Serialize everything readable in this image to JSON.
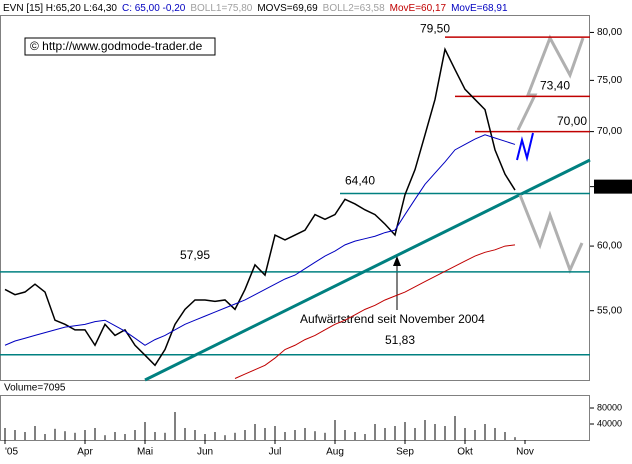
{
  "chart_data": [
    {
      "type": "line",
      "header": [
        {
          "text": "EVN [15] H:65,20 L:64,30",
          "color": "#000000"
        },
        {
          "text": "C: 65,00 -0,20",
          "color": "#0000c0"
        },
        {
          "text": "BOLL1=75,80",
          "color": "#a0a0a0"
        },
        {
          "text": "MOVS=69,69",
          "color": "#000000"
        },
        {
          "text": "BOLL2=63,58",
          "color": "#a0a0a0"
        },
        {
          "text": "MovE=60,17",
          "color": "#c00000"
        },
        {
          "text": "MovE=68,91",
          "color": "#0000c0"
        }
      ],
      "copyright": "© http://www.godmode-trader.de",
      "annotation": "Aufwärtstrend seit November 2004",
      "log_scale": true,
      "ylim": [
        50.1,
        81.9
      ],
      "yticks": [
        {
          "value": 55,
          "label": "55,00"
        },
        {
          "value": 60,
          "label": "60,00"
        },
        {
          "value": 65,
          "label": "65,00"
        },
        {
          "value": 70,
          "label": "70,00"
        },
        {
          "value": 75,
          "label": "75,00"
        },
        {
          "value": 80,
          "label": "80,00"
        }
      ],
      "levels": [
        {
          "value": 79.5,
          "label": "79,50",
          "color": "#c00000"
        },
        {
          "value": 73.4,
          "label": "73,40",
          "color": "#c00000"
        },
        {
          "value": 70.0,
          "label": "70,00",
          "color": "#c00000"
        },
        {
          "value": 64.4,
          "label": "64,40",
          "color": "#008080"
        },
        {
          "value": 57.95,
          "label": "57,95",
          "color": "#008080"
        },
        {
          "value": 51.83,
          "label": "51,83",
          "color": "#008080"
        }
      ],
      "categories": [
        "'05",
        null,
        null,
        null,
        null,
        null,
        null,
        null,
        "Apr",
        null,
        null,
        null,
        null,
        null,
        "Mai",
        null,
        null,
        null,
        null,
        null,
        "Jun",
        null,
        null,
        null,
        null,
        null,
        null,
        "Jul",
        null,
        null,
        null,
        null,
        null,
        "Aug",
        null,
        null,
        null,
        null,
        null,
        null,
        "Sep",
        null,
        null,
        null,
        null,
        null,
        "Okt",
        null,
        null,
        null,
        null,
        null,
        "Nov",
        null,
        null,
        null,
        null,
        null,
        null
      ],
      "series": [
        {
          "name": "EVN",
          "color": "#000000",
          "values": [
            56.6,
            56.2,
            56.4,
            57.0,
            56.4,
            54.3,
            54.0,
            53.6,
            53.6,
            52.5,
            54.0,
            53.2,
            53.6,
            52.5,
            51.8,
            51.1,
            52.2,
            54.0,
            55.1,
            55.8,
            55.8,
            55.7,
            55.8,
            55.1,
            56.6,
            58.5,
            57.7,
            60.9,
            60.5,
            60.9,
            61.3,
            62.6,
            62.2,
            62.6,
            63.9,
            63.5,
            63.0,
            62.6,
            61.8,
            60.9,
            64.3,
            66.5,
            69.7,
            73.1,
            78.2,
            76.1,
            74.1,
            73.1,
            72.1,
            68.3,
            66.1,
            64.7,
            null,
            null,
            null,
            null,
            null,
            null,
            null
          ]
        },
        {
          "name": "MovE=68,91",
          "color": "#0000c0",
          "values": [
            52.5,
            52.8,
            53.0,
            53.2,
            53.4,
            53.6,
            53.8,
            53.9,
            54.0,
            54.2,
            54.3,
            53.9,
            53.5,
            53.0,
            52.5,
            52.9,
            53.2,
            53.6,
            54.0,
            54.3,
            54.6,
            54.9,
            55.2,
            55.5,
            55.8,
            56.2,
            56.6,
            57.0,
            57.4,
            57.7,
            58.2,
            58.7,
            59.2,
            59.6,
            60.1,
            60.4,
            60.6,
            60.8,
            61.1,
            61.3,
            62.6,
            63.9,
            65.2,
            66.2,
            67.2,
            68.3,
            68.8,
            69.3,
            69.7,
            69.4,
            69.1,
            68.8,
            null,
            null,
            null,
            null,
            null,
            null,
            null
          ]
        },
        {
          "name": "MovE=60,17",
          "color": "#c00000",
          "values": [
            null,
            null,
            null,
            null,
            null,
            null,
            null,
            null,
            null,
            null,
            null,
            null,
            null,
            null,
            null,
            null,
            null,
            null,
            null,
            null,
            null,
            null,
            null,
            50.2,
            50.5,
            50.8,
            51.1,
            51.6,
            52.2,
            52.5,
            52.9,
            53.2,
            53.6,
            54.0,
            54.3,
            54.7,
            55.1,
            55.4,
            55.8,
            56.1,
            56.4,
            56.8,
            57.2,
            57.6,
            58.0,
            58.4,
            58.8,
            59.2,
            59.5,
            59.7,
            60.0,
            60.1,
            null,
            null,
            null,
            null,
            null,
            null,
            null
          ]
        }
      ]
    },
    {
      "type": "bar",
      "label": "Volume=7095",
      "color": "#808080",
      "ylim": [
        0,
        110000
      ],
      "yticks": [
        40000,
        80000
      ],
      "values": [
        30000,
        25000,
        20000,
        35000,
        15000,
        28000,
        22000,
        18000,
        25000,
        30000,
        12000,
        20000,
        15000,
        25000,
        45000,
        20000,
        18000,
        70000,
        30000,
        25000,
        15000,
        20000,
        12000,
        18000,
        25000,
        40000,
        30000,
        35000,
        20000,
        25000,
        30000,
        22000,
        18000,
        50000,
        25000,
        20000,
        15000,
        40000,
        30000,
        35000,
        45000,
        30000,
        50000,
        40000,
        35000,
        60000,
        30000,
        25000,
        40000,
        30000,
        20000,
        7095,
        null,
        null,
        null,
        null,
        null,
        null,
        null
      ]
    }
  ]
}
